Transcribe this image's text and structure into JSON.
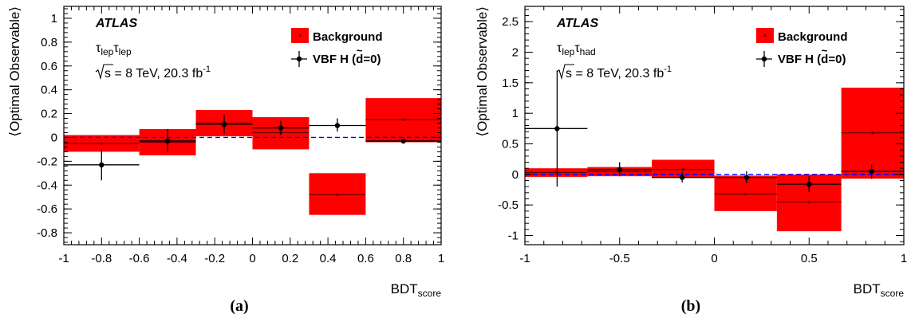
{
  "colors": {
    "background_fill": "#ff0000",
    "data": "#000000",
    "zero_line": "#0000ff"
  },
  "chart_data": [
    {
      "type": "bar",
      "panel_label": "(a)",
      "atlas_label": "ATLAS",
      "channel": {
        "base1": "τ",
        "sub1": "lep",
        "base2": "τ",
        "sub2": "lep"
      },
      "energy_text": "s = 8 TeV, 20.3 fb",
      "energy_sup": "-1",
      "ylabel": "⟨Optimal Observable⟩",
      "xlabel": {
        "base": "BDT",
        "sub": "score"
      },
      "xlim": [
        -1,
        1
      ],
      "ylim": [
        -0.9,
        1.1
      ],
      "xticks": [
        -1,
        -0.8,
        -0.6,
        -0.4,
        -0.2,
        0,
        0.2,
        0.4,
        0.6,
        0.8,
        1
      ],
      "xtick_labels": [
        "-1",
        "-0.8",
        "-0.6",
        "-0.4",
        "-0.2",
        "0",
        "0.2",
        "0.4",
        "0.6",
        "0.8",
        "1"
      ],
      "yticks": [
        -0.8,
        -0.6,
        -0.4,
        -0.2,
        0,
        0.2,
        0.4,
        0.6,
        0.8,
        1
      ],
      "ytick_labels": [
        "-0.8",
        "-0.6",
        "-0.4",
        "-0.2",
        "0",
        "0.2",
        "0.4",
        "0.6",
        "0.8",
        "1"
      ],
      "legend": {
        "placement": "top-right",
        "background_label": "Background",
        "signal_label_pre": "VBF H (",
        "signal_label_d": "d",
        "signal_label_post": "=0)"
      },
      "background": [
        {
          "xlo": -1.0,
          "xhi": -0.6,
          "center": -0.05,
          "ylo": -0.12,
          "yhi": 0.02
        },
        {
          "xlo": -0.6,
          "xhi": -0.3,
          "center": -0.04,
          "ylo": -0.15,
          "yhi": 0.07
        },
        {
          "xlo": -0.3,
          "xhi": 0.0,
          "center": 0.12,
          "ylo": 0.01,
          "yhi": 0.23
        },
        {
          "xlo": 0.0,
          "xhi": 0.3,
          "center": 0.04,
          "ylo": -0.1,
          "yhi": 0.17
        },
        {
          "xlo": 0.3,
          "xhi": 0.6,
          "center": -0.48,
          "ylo": -0.65,
          "yhi": -0.3
        },
        {
          "xlo": 0.6,
          "xhi": 1.0,
          "center": 0.15,
          "ylo": -0.04,
          "yhi": 0.33
        }
      ],
      "signal": [
        {
          "x": -0.8,
          "xlo": -1.0,
          "xhi": -0.6,
          "y": -0.23,
          "ylo": -0.36,
          "yhi": -0.1
        },
        {
          "x": -0.45,
          "xlo": -0.6,
          "xhi": -0.3,
          "y": -0.03,
          "ylo": -0.12,
          "yhi": 0.07
        },
        {
          "x": -0.15,
          "xlo": -0.3,
          "xhi": 0.0,
          "y": 0.11,
          "ylo": 0.03,
          "yhi": 0.19
        },
        {
          "x": 0.15,
          "xlo": 0.0,
          "xhi": 0.3,
          "y": 0.08,
          "ylo": 0.02,
          "yhi": 0.14
        },
        {
          "x": 0.45,
          "xlo": 0.3,
          "xhi": 0.6,
          "y": 0.1,
          "ylo": 0.05,
          "yhi": 0.16
        },
        {
          "x": 0.8,
          "xlo": 0.6,
          "xhi": 1.0,
          "y": -0.03,
          "ylo": -0.05,
          "yhi": -0.01
        }
      ]
    },
    {
      "type": "bar",
      "panel_label": "(b)",
      "atlas_label": "ATLAS",
      "channel": {
        "base1": "τ",
        "sub1": "lep",
        "base2": "τ",
        "sub2": "had"
      },
      "energy_text": "s = 8 TeV, 20.3 fb",
      "energy_sup": "-1",
      "ylabel": "⟨Optimal Observable⟩",
      "xlabel": {
        "base": "BDT",
        "sub": "score"
      },
      "xlim": [
        -1,
        1
      ],
      "ylim": [
        -1.15,
        2.75
      ],
      "xticks": [
        -1,
        -0.5,
        0,
        0.5,
        1
      ],
      "xtick_labels": [
        "-1",
        "-0.5",
        "0",
        "0.5",
        "1"
      ],
      "yticks": [
        -1,
        -0.5,
        0,
        0.5,
        1,
        1.5,
        2,
        2.5
      ],
      "ytick_labels": [
        "-1",
        "-0.5",
        "0",
        "0.5",
        "1",
        "1.5",
        "2",
        "2.5"
      ],
      "legend": {
        "placement": "top-right",
        "background_label": "Background",
        "signal_label_pre": "VBF H (",
        "signal_label_d": "d",
        "signal_label_post": "=0)"
      },
      "background": [
        {
          "xlo": -1.0,
          "xhi": -0.67,
          "center": 0.03,
          "ylo": -0.04,
          "yhi": 0.1
        },
        {
          "xlo": -0.67,
          "xhi": -0.33,
          "center": 0.05,
          "ylo": -0.03,
          "yhi": 0.12
        },
        {
          "xlo": -0.33,
          "xhi": 0.0,
          "center": 0.08,
          "ylo": -0.05,
          "yhi": 0.24
        },
        {
          "xlo": 0.0,
          "xhi": 0.33,
          "center": -0.32,
          "ylo": -0.6,
          "yhi": -0.02
        },
        {
          "xlo": 0.33,
          "xhi": 0.67,
          "center": -0.45,
          "ylo": -0.93,
          "yhi": 0.0
        },
        {
          "xlo": 0.67,
          "xhi": 1.0,
          "center": 0.68,
          "ylo": -0.07,
          "yhi": 1.42
        }
      ],
      "signal": [
        {
          "x": -0.83,
          "xlo": -1.0,
          "xhi": -0.67,
          "y": 0.75,
          "ylo": -0.2,
          "yhi": 1.7
        },
        {
          "x": -0.5,
          "xlo": -0.67,
          "xhi": -0.33,
          "y": 0.08,
          "ylo": -0.03,
          "yhi": 0.2
        },
        {
          "x": -0.17,
          "xlo": -0.33,
          "xhi": 0.0,
          "y": -0.05,
          "ylo": -0.13,
          "yhi": 0.04
        },
        {
          "x": 0.17,
          "xlo": 0.0,
          "xhi": 0.33,
          "y": -0.05,
          "ylo": -0.14,
          "yhi": 0.05
        },
        {
          "x": 0.5,
          "xlo": 0.33,
          "xhi": 0.67,
          "y": -0.16,
          "ylo": -0.29,
          "yhi": -0.03
        },
        {
          "x": 0.83,
          "xlo": 0.67,
          "xhi": 1.0,
          "y": 0.05,
          "ylo": -0.07,
          "yhi": 0.16
        }
      ]
    }
  ]
}
